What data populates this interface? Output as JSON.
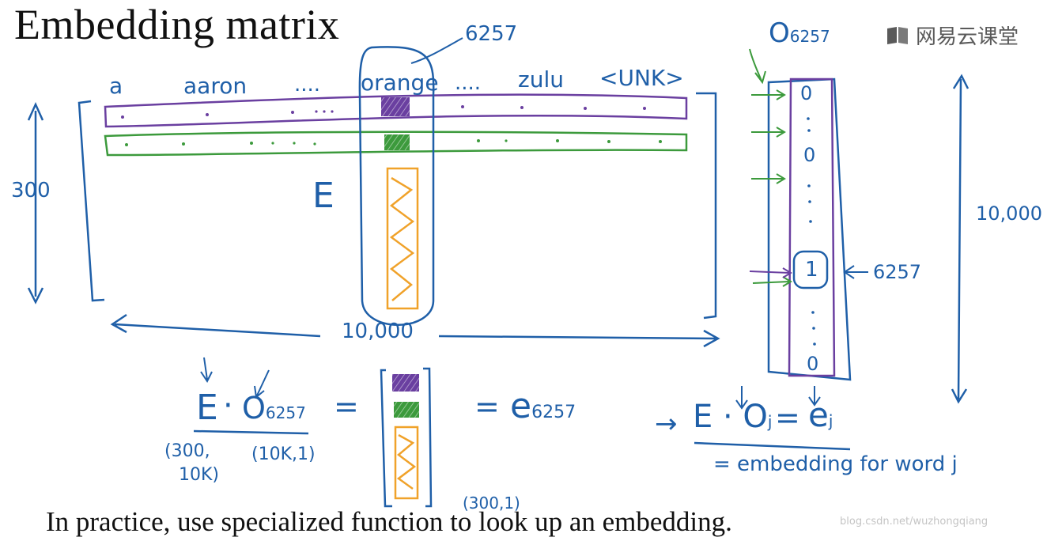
{
  "title": "Embedding matrix",
  "logo_text": "网易云课堂",
  "footer_text": "In practice, use specialized function to look up an embedding.",
  "watermark": "blog.csdn.net/wuzhongqiang",
  "matrix": {
    "symbol": "E",
    "column_labels": [
      "a",
      "aaron",
      "....",
      "orange",
      "....",
      "zulu",
      "<UNK>"
    ],
    "column_index_label": "6257",
    "rows_label": "300",
    "cols_label": "10,000"
  },
  "onehot": {
    "label": "O",
    "label_sub": "6257",
    "values": [
      "0",
      "0",
      "1",
      "0"
    ],
    "one_index_label": "6257",
    "length_label": "10,000"
  },
  "equation": {
    "lhs_E": "E",
    "lhs_dot": "·",
    "lhs_O": "O",
    "lhs_sub": "6257",
    "equals": "=",
    "rhs": "e",
    "rhs_sub": "6257",
    "shape_E_line1": "(300,",
    "shape_E_line2": "10K)",
    "shape_O": "(10K,1)",
    "shape_result": "(300,1)"
  },
  "general": {
    "arrow": "→",
    "text": "E · O",
    "sub_j": "j",
    "equals": "=",
    "rhs": "e",
    "rhs_sub": "j",
    "caption": "= embedding for word j"
  },
  "colors": {
    "ink": "#1f5fa8",
    "purple": "#6a3fa0",
    "green": "#3c9a3c",
    "orange": "#f0a22a",
    "title": "#111111"
  }
}
